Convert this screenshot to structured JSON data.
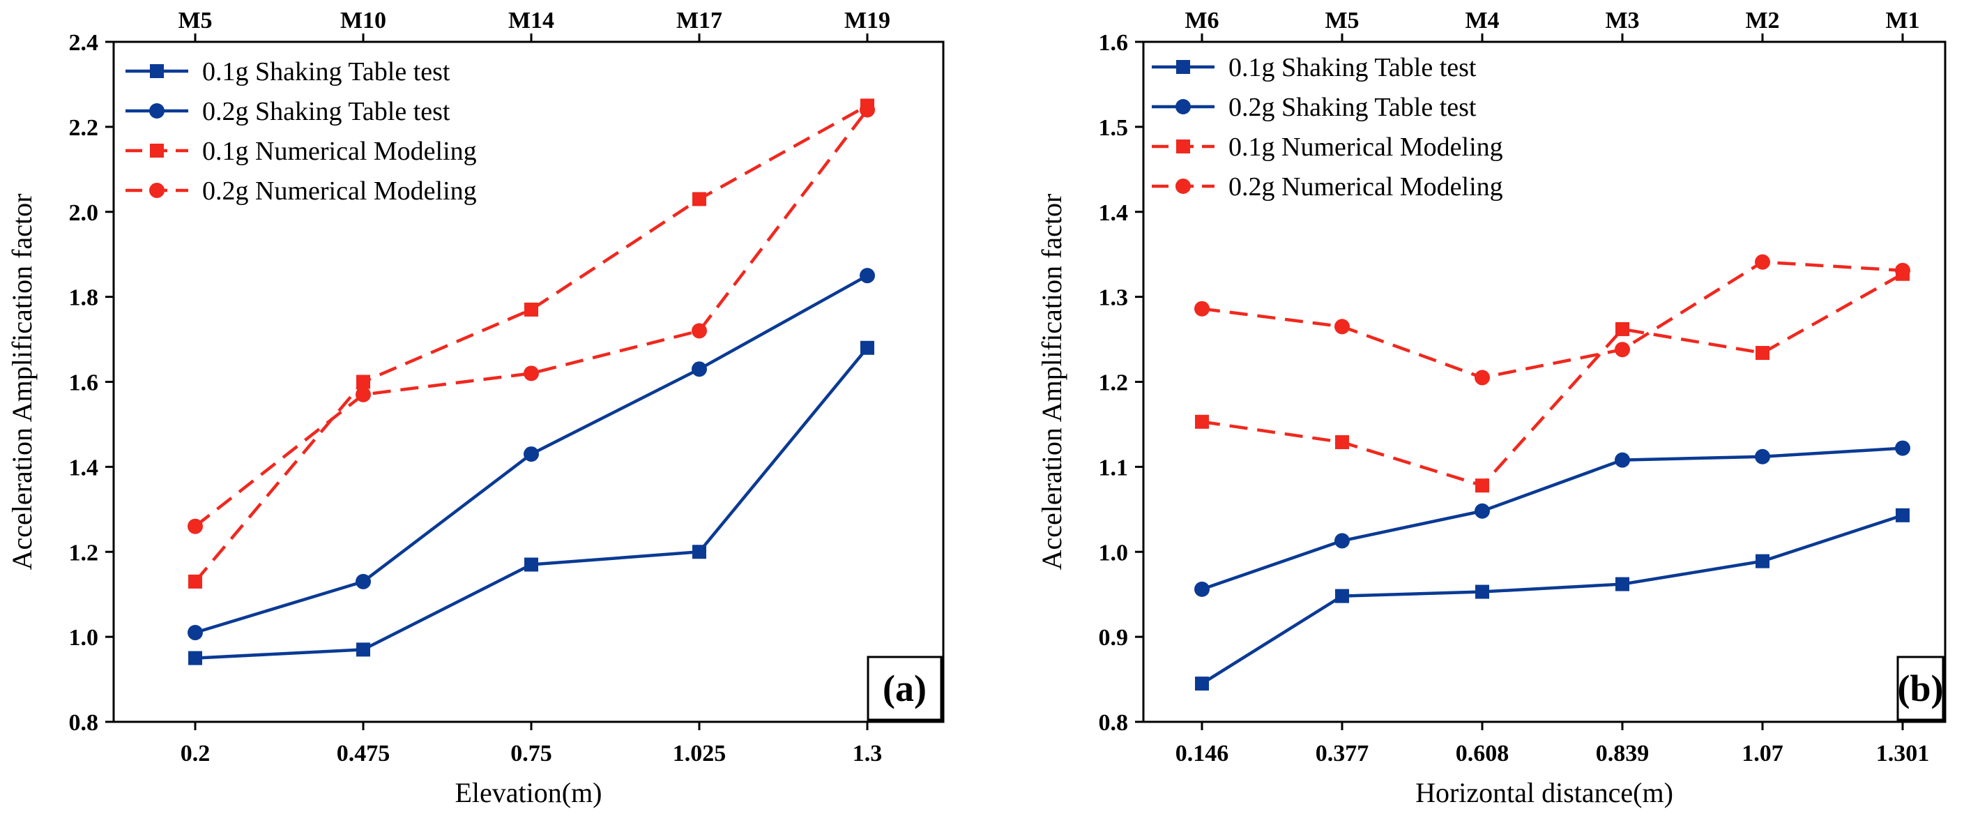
{
  "chart_data": [
    {
      "type": "line",
      "panel_label": "(a)",
      "xlabel": "Elevation(m)",
      "ylabel": "Acceleration Amplification factor",
      "categories": [
        "0.2",
        "0.475",
        "0.75",
        "1.025",
        "1.3"
      ],
      "top_labels": [
        "M5",
        "M10",
        "M14",
        "M17",
        "M19"
      ],
      "ylim": [
        0.8,
        2.4
      ],
      "yticks": [
        "0.8",
        "1.0",
        "1.2",
        "1.4",
        "1.6",
        "1.8",
        "2.0",
        "2.2",
        "2.4"
      ],
      "legend_position": "top-left",
      "series": [
        {
          "name": "0.1g Shaking Table test",
          "color": "#0a3a94",
          "marker": "square",
          "dash": "solid",
          "values": [
            0.95,
            0.97,
            1.17,
            1.2,
            1.68
          ]
        },
        {
          "name": "0.2g Shaking Table test",
          "color": "#0a3a94",
          "marker": "circle",
          "dash": "solid",
          "values": [
            1.01,
            1.13,
            1.43,
            1.63,
            1.85
          ]
        },
        {
          "name": "0.1g Numerical Modeling",
          "color": "#f0281e",
          "marker": "square",
          "dash": "dashed",
          "values": [
            1.13,
            1.6,
            1.77,
            2.03,
            2.25
          ]
        },
        {
          "name": "0.2g Numerical Modeling",
          "color": "#f0281e",
          "marker": "circle",
          "dash": "dashed",
          "values": [
            1.26,
            1.57,
            1.62,
            1.72,
            2.24
          ]
        }
      ]
    },
    {
      "type": "line",
      "panel_label": "(b)",
      "xlabel": "Horizontal distance(m)",
      "ylabel": "Acceleration Amplification factor",
      "categories": [
        "0.146",
        "0.377",
        "0.608",
        "0.839",
        "1.07",
        "1.301"
      ],
      "top_labels": [
        "M6",
        "M5",
        "M4",
        "M3",
        "M2",
        "M1"
      ],
      "ylim": [
        0.8,
        1.6
      ],
      "yticks": [
        "0.8",
        "0.9",
        "1.0",
        "1.1",
        "1.2",
        "1.3",
        "1.4",
        "1.5",
        "1.6"
      ],
      "legend_position": "top-left",
      "series": [
        {
          "name": "0.1g Shaking Table test",
          "color": "#0a3a94",
          "marker": "square",
          "dash": "solid",
          "values": [
            0.845,
            0.948,
            0.953,
            0.962,
            0.989,
            1.043
          ]
        },
        {
          "name": "0.2g Shaking Table test",
          "color": "#0a3a94",
          "marker": "circle",
          "dash": "solid",
          "values": [
            0.956,
            1.013,
            1.048,
            1.108,
            1.112,
            1.122
          ]
        },
        {
          "name": "0.1g Numerical Modeling",
          "color": "#f0281e",
          "marker": "square",
          "dash": "dashed",
          "values": [
            1.153,
            1.129,
            1.078,
            1.262,
            1.234,
            1.327
          ]
        },
        {
          "name": "0.2g Numerical Modeling",
          "color": "#f0281e",
          "marker": "circle",
          "dash": "dashed",
          "values": [
            1.286,
            1.265,
            1.205,
            1.238,
            1.341,
            1.331
          ]
        }
      ]
    }
  ]
}
